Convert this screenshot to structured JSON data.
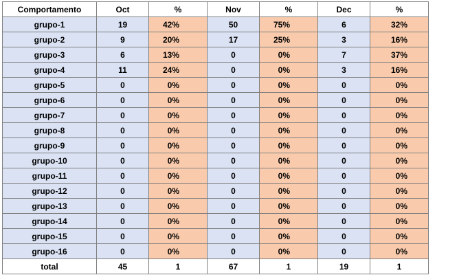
{
  "table": {
    "headers": [
      "Comportamento",
      "Oct",
      "%",
      "Nov",
      "%",
      "Dec",
      "%"
    ],
    "rows": [
      [
        "grupo-1",
        "19",
        "42%",
        "50",
        "75%",
        "6",
        "32%"
      ],
      [
        "grupo-2",
        "9",
        "20%",
        "17",
        "25%",
        "3",
        "16%"
      ],
      [
        "grupo-3",
        "6",
        "13%",
        "0",
        "0%",
        "7",
        "37%"
      ],
      [
        "grupo-4",
        "11",
        "24%",
        "0",
        "0%",
        "3",
        "16%"
      ],
      [
        "grupo-5",
        "0",
        "0%",
        "0",
        "0%",
        "0",
        "0%"
      ],
      [
        "grupo-6",
        "0",
        "0%",
        "0",
        "0%",
        "0",
        "0%"
      ],
      [
        "grupo-7",
        "0",
        "0%",
        "0",
        "0%",
        "0",
        "0%"
      ],
      [
        "grupo-8",
        "0",
        "0%",
        "0",
        "0%",
        "0",
        "0%"
      ],
      [
        "grupo-9",
        "0",
        "0%",
        "0",
        "0%",
        "0",
        "0%"
      ],
      [
        "grupo-10",
        "0",
        "0%",
        "0",
        "0%",
        "0",
        "0%"
      ],
      [
        "grupo-11",
        "0",
        "0%",
        "0",
        "0%",
        "0",
        "0%"
      ],
      [
        "grupo-12",
        "0",
        "0%",
        "0",
        "0%",
        "0",
        "0%"
      ],
      [
        "grupo-13",
        "0",
        "0%",
        "0",
        "0%",
        "0",
        "0%"
      ],
      [
        "grupo-14",
        "0",
        "0%",
        "0",
        "0%",
        "0",
        "0%"
      ],
      [
        "grupo-15",
        "0",
        "0%",
        "0",
        "0%",
        "0",
        "0%"
      ],
      [
        "grupo-16",
        "0",
        "0%",
        "0",
        "0%",
        "0",
        "0%"
      ]
    ],
    "total": [
      "total",
      "45",
      "1",
      "67",
      "1",
      "19",
      "1"
    ],
    "colors": {
      "count_cells": "#dae2f3",
      "percent_cells": "#f9cbac",
      "header_and_total": "#ffffff",
      "grid": "#7f7f7f"
    }
  }
}
